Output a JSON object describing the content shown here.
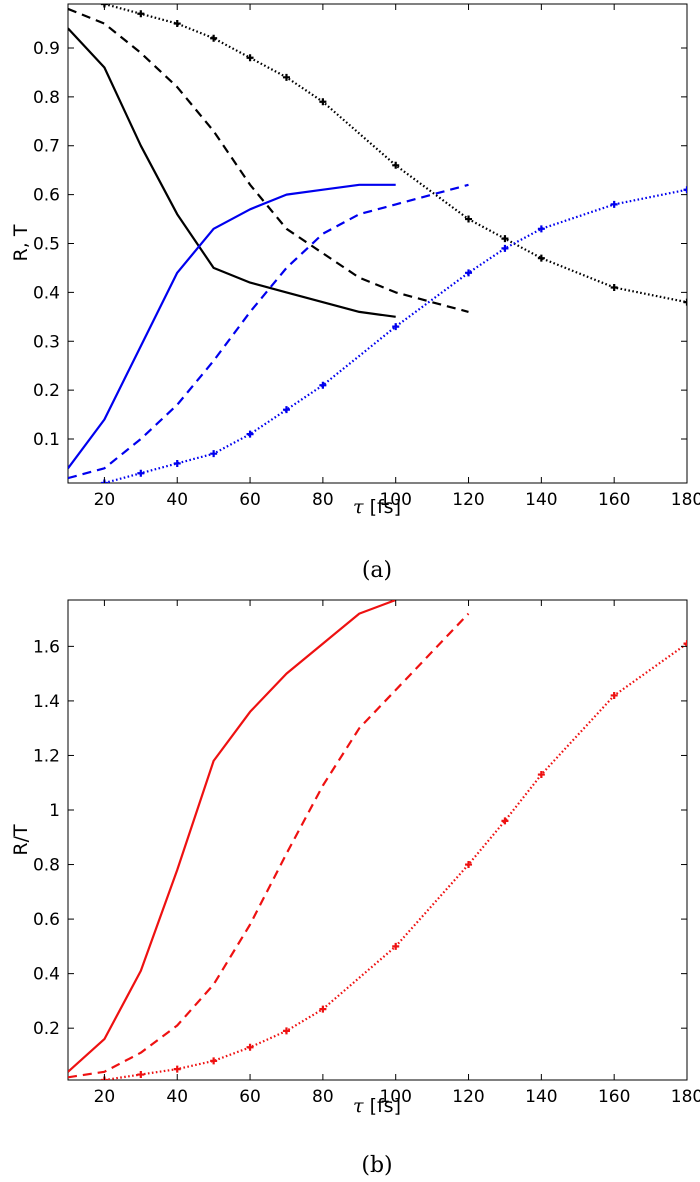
{
  "chart_data": [
    {
      "type": "line",
      "caption": "(a)",
      "xlabel": {
        "symbol": "τ",
        "unit": "[fs]"
      },
      "ylabel": "R, T",
      "xlim": [
        10,
        180
      ],
      "ylim": [
        0.01,
        0.99
      ],
      "xticks": [
        20,
        40,
        60,
        80,
        100,
        120,
        140,
        160,
        180
      ],
      "yticks": [
        0.1,
        0.2,
        0.3,
        0.4,
        0.5,
        0.6,
        0.7,
        0.8,
        0.9
      ],
      "grid": false,
      "series": [
        {
          "color": "#000000",
          "style": "solid",
          "markers": false,
          "points": [
            [
              10,
              0.94
            ],
            [
              20,
              0.86
            ],
            [
              30,
              0.7
            ],
            [
              40,
              0.56
            ],
            [
              50,
              0.45
            ],
            [
              60,
              0.42
            ],
            [
              70,
              0.4
            ],
            [
              80,
              0.38
            ],
            [
              90,
              0.36
            ],
            [
              100,
              0.35
            ]
          ]
        },
        {
          "color": "#000000",
          "style": "dashed",
          "markers": false,
          "points": [
            [
              10,
              0.98
            ],
            [
              20,
              0.95
            ],
            [
              30,
              0.89
            ],
            [
              40,
              0.82
            ],
            [
              50,
              0.73
            ],
            [
              60,
              0.62
            ],
            [
              70,
              0.53
            ],
            [
              80,
              0.48
            ],
            [
              90,
              0.43
            ],
            [
              100,
              0.4
            ],
            [
              110,
              0.38
            ],
            [
              120,
              0.36
            ]
          ]
        },
        {
          "color": "#000000",
          "style": "dotted",
          "markers": true,
          "points": [
            [
              20,
              0.99
            ],
            [
              30,
              0.97
            ],
            [
              40,
              0.95
            ],
            [
              50,
              0.92
            ],
            [
              60,
              0.88
            ],
            [
              70,
              0.84
            ],
            [
              80,
              0.79
            ],
            [
              100,
              0.66
            ],
            [
              120,
              0.55
            ],
            [
              130,
              0.51
            ],
            [
              140,
              0.47
            ],
            [
              160,
              0.41
            ],
            [
              180,
              0.38
            ]
          ]
        },
        {
          "color": "#0000ee",
          "style": "solid",
          "markers": false,
          "points": [
            [
              10,
              0.04
            ],
            [
              20,
              0.14
            ],
            [
              30,
              0.29
            ],
            [
              40,
              0.44
            ],
            [
              50,
              0.53
            ],
            [
              60,
              0.57
            ],
            [
              70,
              0.6
            ],
            [
              80,
              0.61
            ],
            [
              90,
              0.62
            ],
            [
              100,
              0.62
            ]
          ]
        },
        {
          "color": "#0000ee",
          "style": "dashed",
          "markers": false,
          "points": [
            [
              10,
              0.02
            ],
            [
              20,
              0.04
            ],
            [
              30,
              0.1
            ],
            [
              40,
              0.17
            ],
            [
              50,
              0.26
            ],
            [
              60,
              0.36
            ],
            [
              70,
              0.45
            ],
            [
              80,
              0.52
            ],
            [
              90,
              0.56
            ],
            [
              100,
              0.58
            ],
            [
              110,
              0.6
            ],
            [
              120,
              0.62
            ]
          ]
        },
        {
          "color": "#0000ee",
          "style": "dotted",
          "markers": true,
          "points": [
            [
              20,
              0.01
            ],
            [
              30,
              0.03
            ],
            [
              40,
              0.05
            ],
            [
              50,
              0.07
            ],
            [
              60,
              0.11
            ],
            [
              70,
              0.16
            ],
            [
              80,
              0.21
            ],
            [
              100,
              0.33
            ],
            [
              120,
              0.44
            ],
            [
              130,
              0.49
            ],
            [
              140,
              0.53
            ],
            [
              160,
              0.58
            ],
            [
              180,
              0.61
            ]
          ]
        }
      ]
    },
    {
      "type": "line",
      "caption": "(b)",
      "xlabel": {
        "symbol": "τ",
        "unit": "[fs]"
      },
      "ylabel": "R/T",
      "xlim": [
        10,
        180
      ],
      "ylim": [
        0.01,
        1.77
      ],
      "xticks": [
        20,
        40,
        60,
        80,
        100,
        120,
        140,
        160,
        180
      ],
      "yticks": [
        0.2,
        0.4,
        0.6,
        0.8,
        1,
        1.2,
        1.4,
        1.6
      ],
      "grid": false,
      "series": [
        {
          "color": "#ee1111",
          "style": "solid",
          "markers": false,
          "points": [
            [
              10,
              0.04
            ],
            [
              20,
              0.16
            ],
            [
              30,
              0.41
            ],
            [
              40,
              0.78
            ],
            [
              50,
              1.18
            ],
            [
              60,
              1.36
            ],
            [
              70,
              1.5
            ],
            [
              80,
              1.61
            ],
            [
              90,
              1.72
            ],
            [
              100,
              1.77
            ]
          ]
        },
        {
          "color": "#ee1111",
          "style": "dashed",
          "markers": false,
          "points": [
            [
              10,
              0.02
            ],
            [
              20,
              0.04
            ],
            [
              30,
              0.11
            ],
            [
              40,
              0.21
            ],
            [
              50,
              0.36
            ],
            [
              60,
              0.58
            ],
            [
              70,
              0.84
            ],
            [
              80,
              1.09
            ],
            [
              90,
              1.3
            ],
            [
              100,
              1.44
            ],
            [
              110,
              1.58
            ],
            [
              120,
              1.72
            ]
          ]
        },
        {
          "color": "#ee1111",
          "style": "dotted",
          "markers": true,
          "points": [
            [
              20,
              0.01
            ],
            [
              30,
              0.03
            ],
            [
              40,
              0.05
            ],
            [
              50,
              0.08
            ],
            [
              60,
              0.13
            ],
            [
              70,
              0.19
            ],
            [
              80,
              0.27
            ],
            [
              100,
              0.5
            ],
            [
              120,
              0.8
            ],
            [
              130,
              0.96
            ],
            [
              140,
              1.13
            ],
            [
              160,
              1.42
            ],
            [
              180,
              1.61
            ]
          ]
        }
      ]
    }
  ]
}
